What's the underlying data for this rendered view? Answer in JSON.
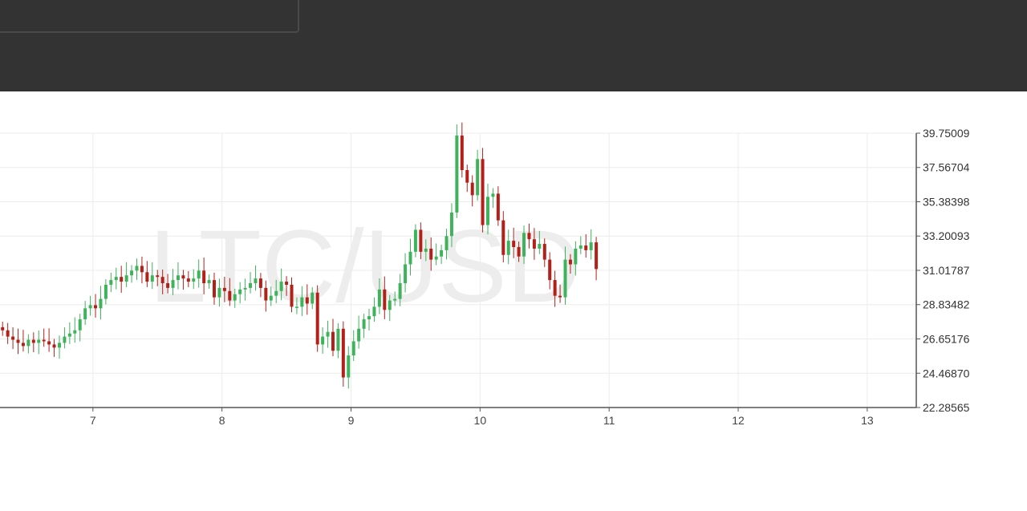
{
  "toolbar": {
    "buttons": [
      {
        "label": ""
      },
      {
        "label": ""
      },
      {
        "label": ""
      }
    ]
  },
  "colors": {
    "topbar": "#333333",
    "up": "#3fb35c",
    "down": "#b3201a",
    "grid": "#ececec",
    "axis": "#555555",
    "watermark": "#ededed"
  },
  "chart_data": {
    "type": "candlestick",
    "title": "",
    "watermark": "LTC/USD",
    "xlabel": "",
    "ylabel": "",
    "x_ticks": [
      "7",
      "8",
      "9",
      "10",
      "11",
      "12",
      "13"
    ],
    "y_ticks": [
      "22.28565",
      "24.46870",
      "26.65176",
      "28.83482",
      "31.01787",
      "33.20093",
      "35.38398",
      "37.56704",
      "39.75009"
    ],
    "xlim": [
      6.28,
      13.38
    ],
    "ylim": [
      22.28565,
      39.75009
    ],
    "grid": true,
    "candles_start": 6.3,
    "candles_step": 0.04,
    "closes": [
      27.2,
      26.8,
      26.6,
      26.4,
      26.2,
      26.6,
      26.4,
      26.6,
      26.5,
      26.3,
      26.1,
      26.4,
      26.8,
      27.0,
      27.2,
      27.9,
      28.6,
      28.8,
      28.6,
      29.2,
      30.1,
      30.4,
      30.6,
      30.3,
      30.7,
      31.0,
      31.3,
      30.9,
      30.3,
      30.7,
      30.6,
      30.2,
      29.9,
      30.4,
      30.7,
      30.5,
      30.3,
      30.5,
      31.0,
      30.2,
      30.4,
      29.3,
      29.9,
      29.7,
      29.1,
      29.5,
      29.8,
      29.9,
      30.2,
      30.5,
      29.9,
      29.1,
      29.4,
      29.7,
      30.3,
      30.1,
      28.7,
      28.7,
      29.3,
      28.9,
      29.6,
      26.3,
      26.8,
      27.1,
      25.9,
      27.3,
      24.2,
      25.6,
      26.5,
      27.3,
      27.9,
      28.1,
      28.7,
      29.8,
      28.5,
      29.1,
      29.2,
      30.2,
      31.4,
      32.2,
      33.6,
      32.2,
      32.4,
      31.7,
      31.9,
      32.3,
      33.2,
      34.7,
      39.6,
      37.4,
      36.6,
      35.8,
      38.1,
      33.9,
      35.7,
      35.9,
      34.2,
      32.0,
      32.9,
      32.5,
      31.9,
      33.4,
      33.0,
      32.4,
      32.7,
      31.7,
      30.4,
      29.4,
      29.3,
      31.7,
      31.4,
      32.4,
      32.6,
      32.3,
      32.8,
      31.1
    ],
    "series": [
      {
        "name": "",
        "type": "candlestick"
      }
    ]
  }
}
